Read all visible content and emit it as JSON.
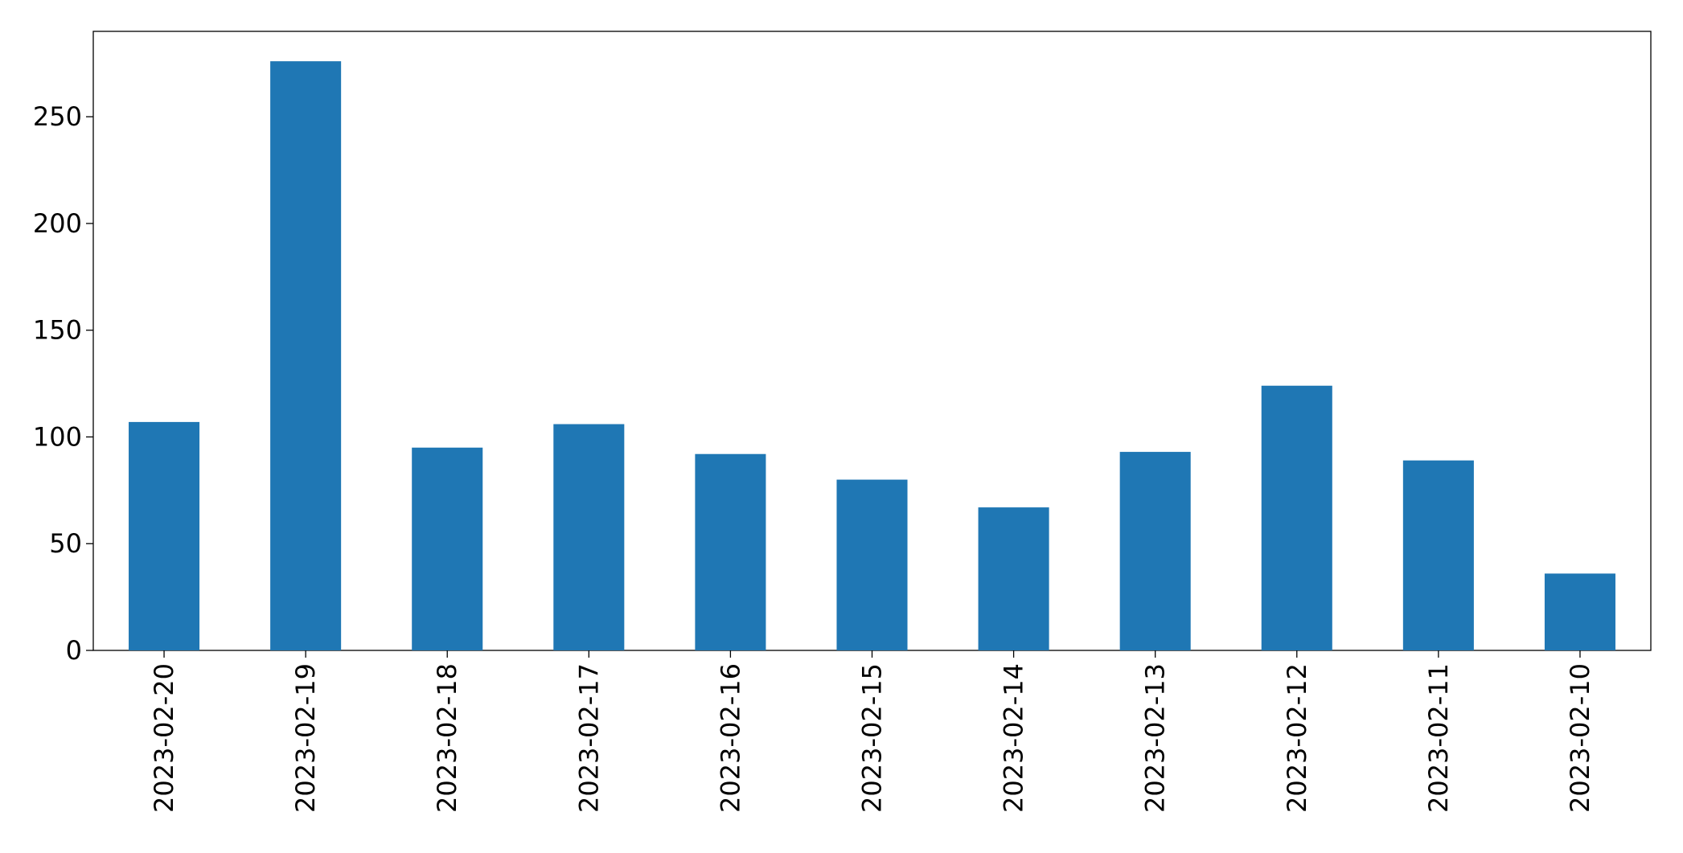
{
  "chart_data": {
    "type": "bar",
    "categories": [
      "2023-02-20",
      "2023-02-19",
      "2023-02-18",
      "2023-02-17",
      "2023-02-16",
      "2023-02-15",
      "2023-02-14",
      "2023-02-13",
      "2023-02-12",
      "2023-02-11",
      "2023-02-10"
    ],
    "values": [
      107,
      276,
      95,
      106,
      92,
      80,
      67,
      93,
      124,
      89,
      36
    ],
    "color": "#1f77b4",
    "ylim": [
      0,
      290
    ],
    "yticks": [
      0,
      50,
      100,
      150,
      200,
      250
    ],
    "grid": false
  }
}
